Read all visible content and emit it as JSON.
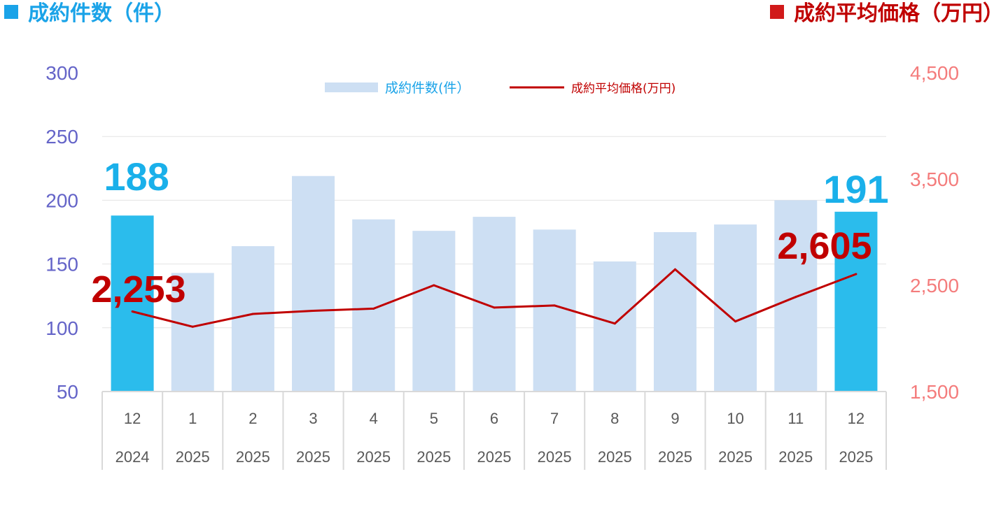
{
  "header": {
    "left_title": "成約件数（件）",
    "right_title": "成約平均価格（万円）",
    "left_color": "#1aa3e8",
    "right_color": "#c00000"
  },
  "chart_data": {
    "type": "bar+line",
    "categories": [
      {
        "month": "12",
        "year": "2024"
      },
      {
        "month": "1",
        "year": "2025"
      },
      {
        "month": "2",
        "year": "2025"
      },
      {
        "month": "3",
        "year": "2025"
      },
      {
        "month": "4",
        "year": "2025"
      },
      {
        "month": "5",
        "year": "2025"
      },
      {
        "month": "6",
        "year": "2025"
      },
      {
        "month": "7",
        "year": "2025"
      },
      {
        "month": "8",
        "year": "2025"
      },
      {
        "month": "9",
        "year": "2025"
      },
      {
        "month": "10",
        "year": "2025"
      },
      {
        "month": "11",
        "year": "2025"
      },
      {
        "month": "12",
        "year": "2025"
      }
    ],
    "series": [
      {
        "name": "成約件数(件）",
        "type": "bar",
        "axis": "left",
        "values": [
          188,
          143,
          164,
          219,
          185,
          176,
          187,
          177,
          152,
          175,
          181,
          200,
          191
        ],
        "color": "#cddff3",
        "highlight_color": "#2bbcec",
        "highlight_indices": [
          0,
          12
        ]
      },
      {
        "name": "成約平均価格(万円)",
        "type": "line",
        "axis": "right",
        "values": [
          2253,
          2110,
          2230,
          2260,
          2280,
          2500,
          2290,
          2310,
          2140,
          2650,
          2160,
          2390,
          2605
        ],
        "color": "#c00000"
      }
    ],
    "left_axis": {
      "min": 50,
      "max": 300,
      "ticks": [
        "300",
        "250",
        "200",
        "150",
        "100",
        "50"
      ],
      "color": "#6464c8"
    },
    "right_axis": {
      "min": 1500,
      "max": 4500,
      "ticks": [
        "4,500",
        "3,500",
        "2,500",
        "1,500"
      ],
      "color": "#f47c7c"
    },
    "gridlines": true,
    "legend_position": "top-center",
    "annotations": [
      {
        "series": 0,
        "index": 0,
        "text": "188",
        "color": "#1ab0ea"
      },
      {
        "series": 0,
        "index": 12,
        "text": "191",
        "color": "#1ab0ea"
      },
      {
        "series": 1,
        "index": 0,
        "text": "2,253",
        "color": "#c00000"
      },
      {
        "series": 1,
        "index": 12,
        "text": "2,605",
        "color": "#c00000"
      }
    ]
  }
}
